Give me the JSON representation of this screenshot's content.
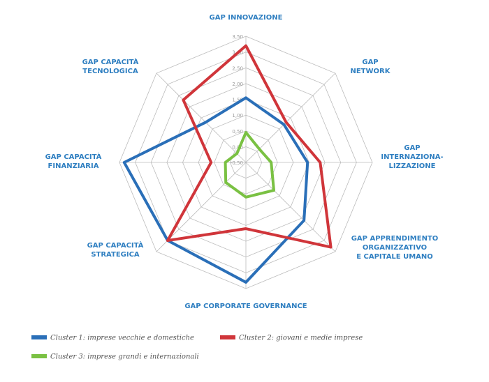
{
  "chart_data": {
    "type": "radar",
    "categories": [
      [
        "GAP INNOVAZIONE"
      ],
      [
        "GAP",
        "NETWORK"
      ],
      [
        "GAP",
        "INTERNAZIONA-",
        "LIZZAZIONE"
      ],
      [
        "GAP APPRENDIMENTO",
        "ORGANIZZATIVO",
        "E CAPITALE UMANO"
      ],
      [
        "GAP CORPORATE GOVERNANCE"
      ],
      [
        "GAP CAPACITÀ",
        "STRATEGICA"
      ],
      [
        "GAP CAPACITÀ",
        "FINANZIARIA"
      ],
      [
        "GAP CAPACITÀ",
        "TECNOLOGICA"
      ]
    ],
    "series": [
      {
        "name": "Cluster 1: imprese vecchie e domestiche",
        "color": "#2a6fb8",
        "values": [
          1.55,
          1.2,
          1.45,
          2.1,
          3.3,
          3.0,
          3.35,
          1.3
        ]
      },
      {
        "name": "Cluster 2: giovani e medie imprese",
        "color": "#d0353a",
        "values": [
          3.2,
          1.3,
          1.85,
          3.3,
          1.6,
          3.0,
          0.6,
          2.3
        ]
      },
      {
        "name": "Cluster 3: imprese grandi e internazionali",
        "color": "#7ac143",
        "values": [
          0.45,
          0.1,
          0.3,
          0.75,
          0.6,
          0.4,
          0.15,
          -0.1
        ]
      }
    ],
    "ylim": [
      -0.5,
      3.5
    ],
    "yticks": [
      {
        "value": -0.5,
        "label": "-0,50"
      },
      {
        "value": 0,
        "label": "0,00"
      },
      {
        "value": 0.5,
        "label": "0,50"
      },
      {
        "value": 1,
        "label": "1,00"
      },
      {
        "value": 1.5,
        "label": "1,50"
      },
      {
        "value": 2,
        "label": "2,00"
      },
      {
        "value": 2.5,
        "label": "2,50"
      },
      {
        "value": 3,
        "label": "3,00"
      },
      {
        "value": 3.5,
        "label": "3,50"
      }
    ],
    "grid": true
  }
}
